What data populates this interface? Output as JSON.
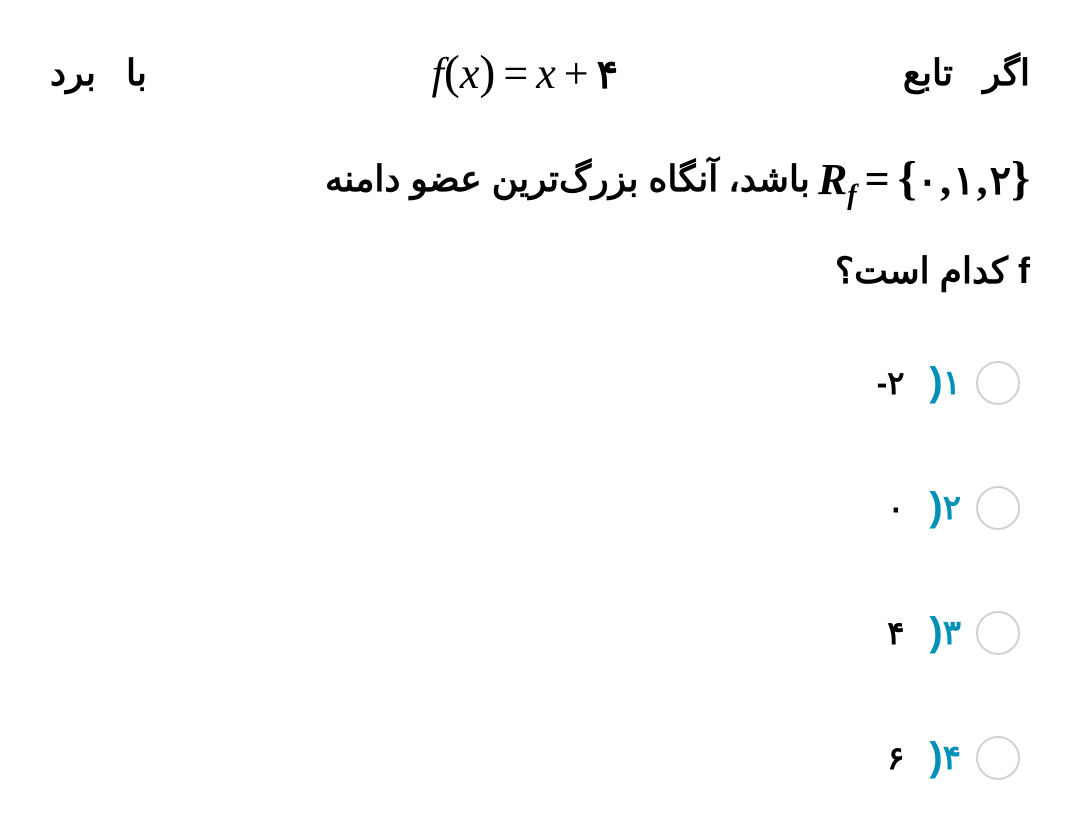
{
  "question": {
    "line1_right_word1": "اگر",
    "line1_right_word2": "تابع",
    "line1_left_word1": "با",
    "line1_left_word2": "برد",
    "formula_f": "f",
    "formula_x": "x",
    "formula_const": "۴",
    "range_var": "R",
    "range_sub": "f",
    "range_set_v1": "۰",
    "range_set_v2": "۱",
    "range_set_v3": "۲",
    "line2_text": "باشد، آنگاه بزرگ‌ترین عضو دامنه",
    "line3_prefix": "f",
    "line3_text": " کدام است؟"
  },
  "options": [
    {
      "num": "۱",
      "value": "-۲"
    },
    {
      "num": "۲",
      "value": "۰"
    },
    {
      "num": "۳",
      "value": "۴"
    },
    {
      "num": "۴",
      "value": "۶"
    }
  ],
  "colors": {
    "option_number": "#0090b8",
    "text": "#000000",
    "radio_border": "#d0d0d0",
    "background": "#ffffff"
  }
}
